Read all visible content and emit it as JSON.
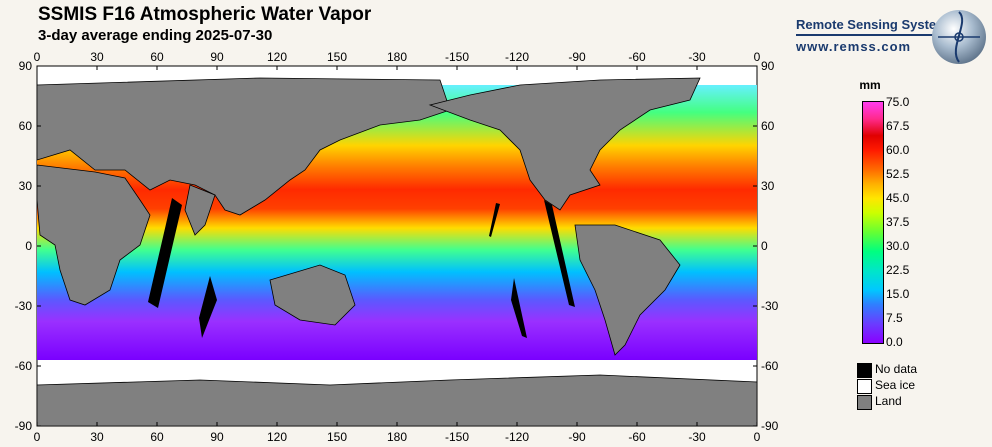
{
  "header": {
    "title": "SSMIS F16 Atmospheric Water Vapor",
    "subtitle": "3-day average ending 2025-07-30"
  },
  "axes": {
    "lon_ticks": [
      "0",
      "30",
      "60",
      "90",
      "120",
      "150",
      "180",
      "-150",
      "-120",
      "-90",
      "-60",
      "-30",
      "0"
    ],
    "lat_ticks": [
      "90",
      "60",
      "30",
      "0",
      "-30",
      "-60",
      "-90"
    ]
  },
  "map": {
    "type": "global equirectangular",
    "lon_range": [
      0,
      360
    ],
    "lat_range": [
      90,
      -90
    ],
    "colors": {
      "land": "#808080",
      "sea_ice": "#ffffff",
      "no_data": "#000000"
    }
  },
  "logo": {
    "name": "Remote Sensing Systems",
    "url": "www.remss.com"
  },
  "colorbar": {
    "unit": "mm",
    "labels": [
      "75.0",
      "67.5",
      "60.0",
      "52.5",
      "45.0",
      "37.5",
      "30.0",
      "22.5",
      "15.0",
      "7.5",
      "0.0"
    ]
  },
  "legend": [
    {
      "label": "No data",
      "color": "#000000"
    },
    {
      "label": "Sea ice",
      "color": "#ffffff"
    },
    {
      "label": "Land",
      "color": "#808080"
    }
  ]
}
